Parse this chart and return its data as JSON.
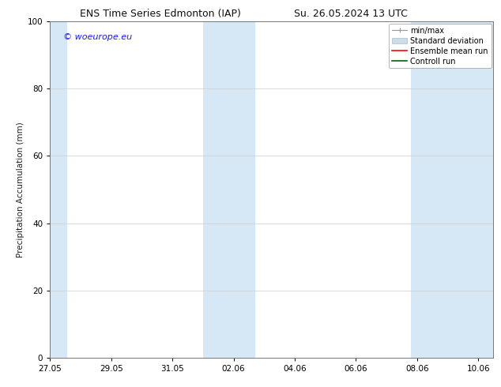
{
  "title_left": "ENS Time Series Edmonton (IAP)",
  "title_right": "Su. 26.05.2024 13 UTC",
  "ylabel": "Precipitation Accumulation (mm)",
  "ylim": [
    0,
    100
  ],
  "yticks": [
    0,
    20,
    40,
    60,
    80,
    100
  ],
  "watermark": "© woeurope.eu",
  "watermark_color": "#1a1aff",
  "background_color": "#ffffff",
  "plot_bg_color": "#ffffff",
  "shaded_bands_color": "#d6e8f5",
  "font_size_title": 9,
  "font_size_axis": 7.5,
  "font_size_legend": 7,
  "font_size_watermark": 8,
  "grid_color": "#cccccc",
  "legend_items": [
    {
      "label": "min/max",
      "color": "#aaaaaa"
    },
    {
      "label": "Standard deviation",
      "color": "#ccdde8"
    },
    {
      "label": "Ensemble mean run",
      "color": "#ff0000"
    },
    {
      "label": "Controll run",
      "color": "#006600"
    }
  ]
}
